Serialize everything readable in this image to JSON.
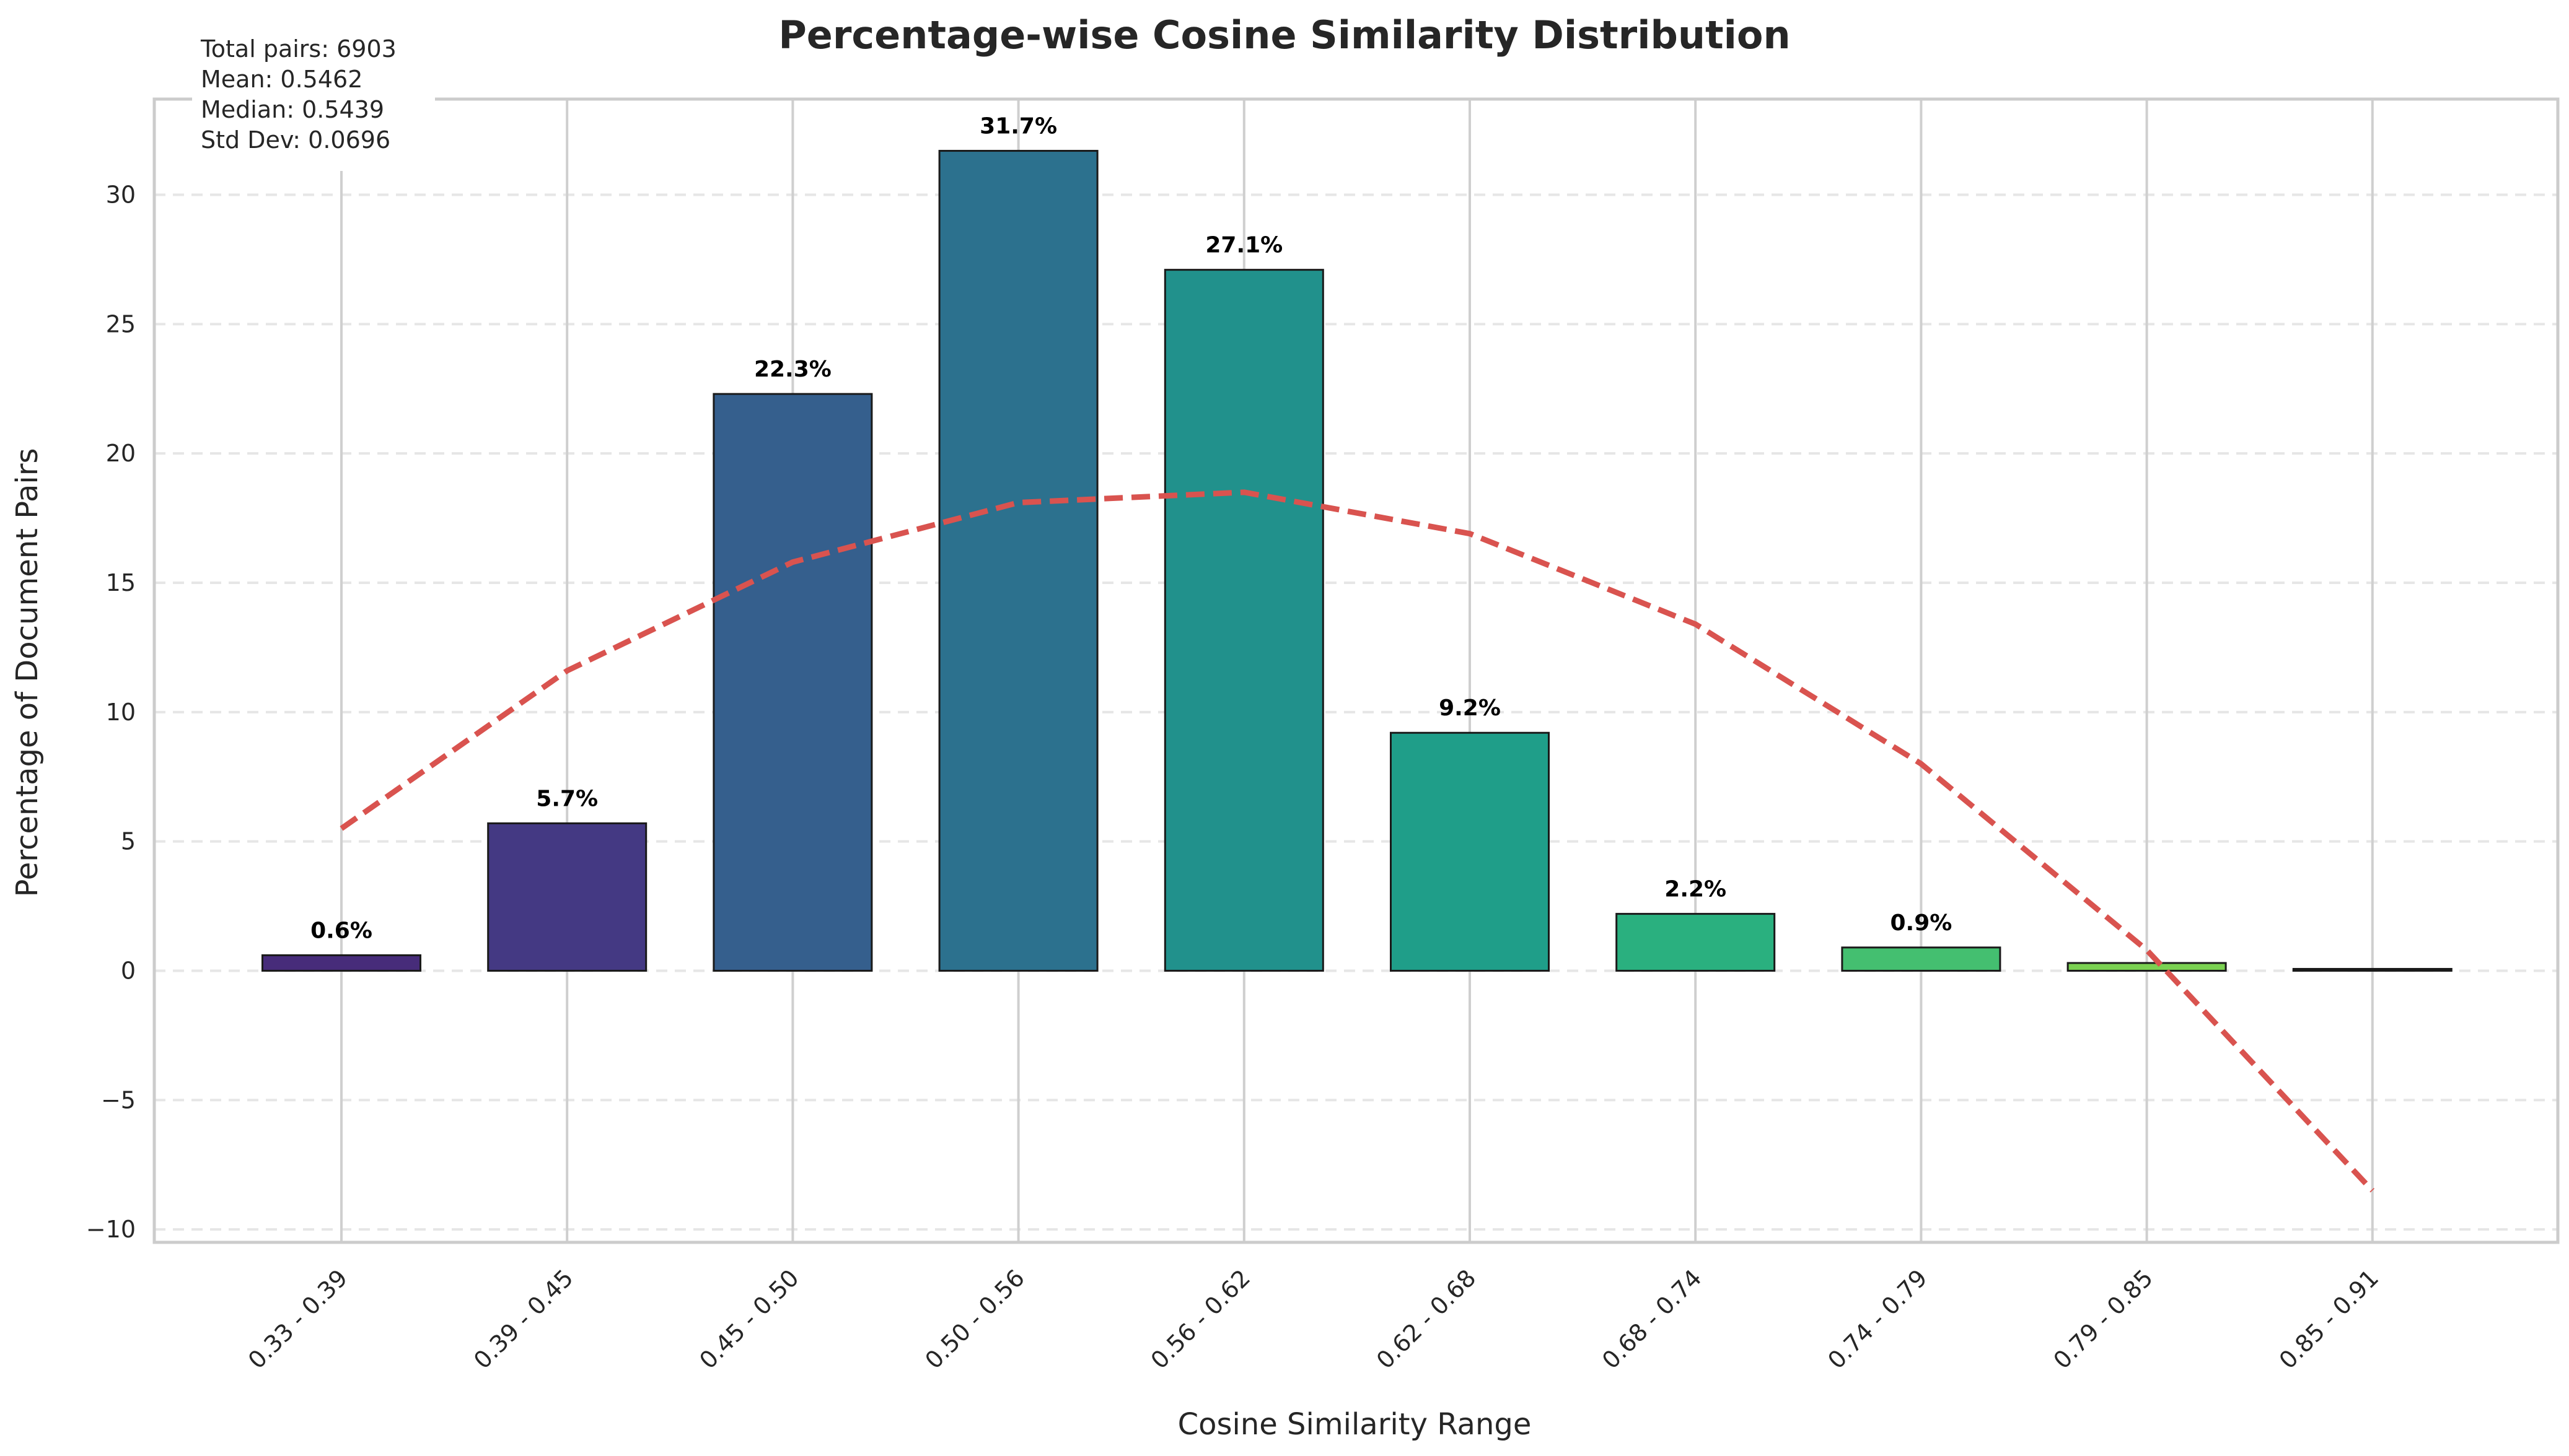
{
  "chart_data": {
    "type": "bar",
    "title": "Percentage-wise Cosine Similarity Distribution",
    "xlabel": "Cosine Similarity Range",
    "ylabel": "Percentage of Document Pairs",
    "categories": [
      "0.33 - 0.39",
      "0.39 - 0.45",
      "0.45 - 0.50",
      "0.50 - 0.56",
      "0.56 - 0.62",
      "0.62 - 0.68",
      "0.68 - 0.74",
      "0.74 - 0.79",
      "0.79 - 0.85",
      "0.85 - 0.91"
    ],
    "values": [
      0.6,
      5.7,
      22.3,
      31.7,
      27.1,
      9.2,
      2.2,
      0.9,
      0.3,
      0.05
    ],
    "value_labels": [
      "0.6%",
      "5.7%",
      "22.3%",
      "31.7%",
      "27.1%",
      "9.2%",
      "2.2%",
      "0.9%",
      "",
      ""
    ],
    "bar_colors": [
      "#472c7a",
      "#443983",
      "#355f8d",
      "#2c718e",
      "#21918c",
      "#1f9e89",
      "#2ab07f",
      "#44bf70",
      "#7ad151",
      "#fde725"
    ],
    "trend_line": {
      "color": "#d9534f",
      "style": "dashed",
      "values": [
        5.5,
        11.6,
        15.8,
        18.1,
        18.5,
        16.9,
        13.4,
        8.0,
        0.8,
        -8.5
      ]
    },
    "ylim": [
      -10.5,
      33.7
    ],
    "yticks": [
      -10,
      -5,
      0,
      5,
      10,
      15,
      20,
      25,
      30
    ],
    "ytick_labels": [
      "−10",
      "−5",
      "0",
      "5",
      "10",
      "15",
      "20",
      "25",
      "30"
    ],
    "grid": true,
    "stats_box": {
      "lines": [
        "Total pairs: 6903",
        "Mean: 0.5462",
        "Median: 0.5439",
        "Std Dev: 0.0696"
      ],
      "placement": "top-left"
    }
  }
}
